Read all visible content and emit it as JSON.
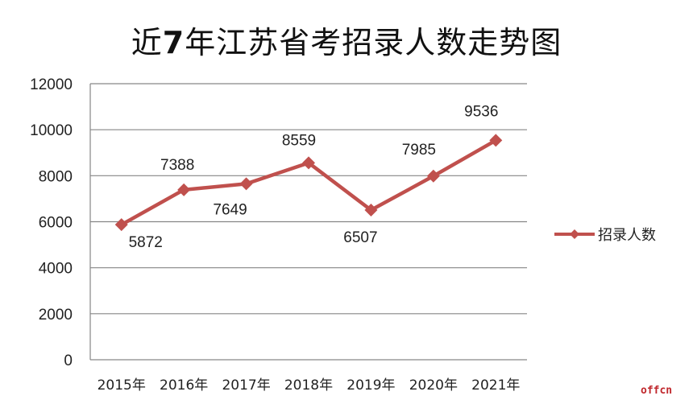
{
  "chart_data": {
    "type": "line",
    "title": "近7年江苏省考招录人数走势图",
    "xlabel": "",
    "ylabel": "",
    "categories": [
      "2015年",
      "2016年",
      "2017年",
      "2018年",
      "2019年",
      "2020年",
      "2021年"
    ],
    "series": [
      {
        "name": "招录人数",
        "values": [
          5872,
          7388,
          7649,
          8559,
          6507,
          7985,
          9536
        ],
        "color": "#c0504d",
        "marker": "diamond"
      }
    ],
    "ylim": [
      0,
      12000
    ],
    "yticks": [
      0,
      2000,
      4000,
      6000,
      8000,
      10000,
      12000
    ],
    "grid": true,
    "legend_position": "right",
    "data_labels": true
  },
  "title": {
    "prefix": "近",
    "number": "7",
    "suffix": "年江苏省考招录人数走势图"
  },
  "legend": {
    "label": "招录人数"
  },
  "watermark": "offcn",
  "colors": {
    "series": "#c0504d",
    "grid": "#868686"
  }
}
